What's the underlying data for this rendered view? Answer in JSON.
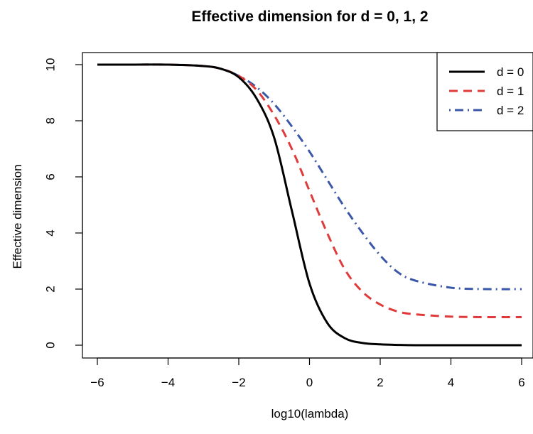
{
  "chart_data": {
    "type": "line",
    "title": "Effective dimension for d = 0, 1, 2",
    "xlabel": "log10(lambda)",
    "ylabel": "Effective dimension",
    "xlim": [
      -6,
      6
    ],
    "ylim": [
      0,
      10
    ],
    "x_ticks": [
      -6,
      -4,
      -2,
      0,
      2,
      4,
      6
    ],
    "x_tick_labels": [
      "−6",
      "−4",
      "−2",
      "0",
      "2",
      "4",
      "6"
    ],
    "y_ticks": [
      0,
      2,
      4,
      6,
      8,
      10
    ],
    "y_tick_labels": [
      "0",
      "2",
      "4",
      "6",
      "8",
      "10"
    ],
    "grid": false,
    "legend_position": "top-right",
    "x": [
      -6,
      -5,
      -4,
      -3,
      -2.5,
      -2,
      -1.5,
      -1,
      -0.5,
      0,
      0.5,
      1,
      1.5,
      2,
      2.5,
      3,
      4,
      5,
      6
    ],
    "series": [
      {
        "name": "d = 0",
        "color": "#000000",
        "dash": "solid",
        "values": [
          10.0,
          10.0,
          10.0,
          9.95,
          9.85,
          9.55,
          8.8,
          7.4,
          4.8,
          2.2,
          0.8,
          0.25,
          0.08,
          0.03,
          0.01,
          0.0,
          0.0,
          0.0,
          0.0
        ]
      },
      {
        "name": "d = 1",
        "color": "#df3b3b",
        "dash": "dashed",
        "values": [
          10.0,
          10.0,
          10.0,
          9.95,
          9.85,
          9.6,
          9.1,
          8.2,
          7.0,
          5.5,
          4.0,
          2.7,
          1.9,
          1.45,
          1.2,
          1.1,
          1.02,
          1.0,
          1.0
        ]
      },
      {
        "name": "d = 2",
        "color": "#3b57a8",
        "dash": "dotdash",
        "values": [
          10.0,
          10.0,
          10.0,
          9.95,
          9.85,
          9.6,
          9.2,
          8.6,
          7.8,
          6.9,
          5.9,
          4.9,
          4.0,
          3.2,
          2.6,
          2.3,
          2.05,
          2.0,
          2.0
        ]
      }
    ]
  }
}
